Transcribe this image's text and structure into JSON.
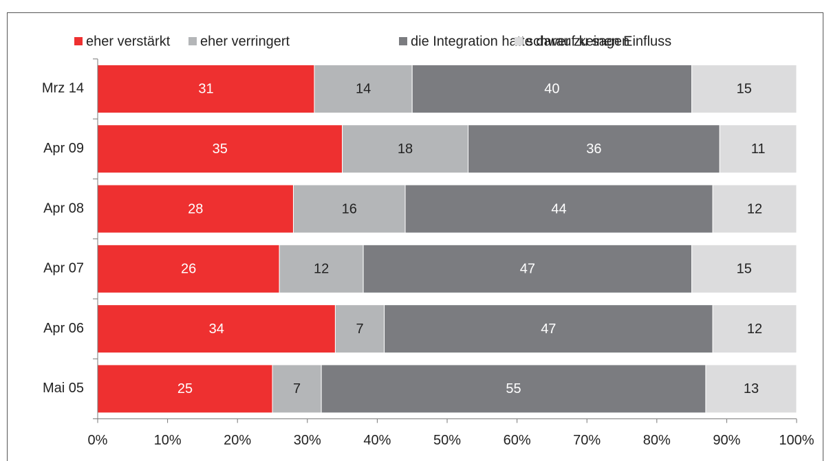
{
  "chart_data": {
    "type": "stacked_barh",
    "categories": [
      "Mrz 14",
      "Apr 09",
      "Apr 08",
      "Apr 07",
      "Apr 06",
      "Mai 05"
    ],
    "series": [
      {
        "name": "eher verstärkt",
        "color": "#ee3030",
        "values": [
          31,
          35,
          28,
          26,
          34,
          25
        ]
      },
      {
        "name": "eher verringert",
        "color": "#b4b6b8",
        "values": [
          14,
          18,
          16,
          12,
          7,
          7
        ]
      },
      {
        "name": "die Integration hatte darauf keinen Einfluss",
        "color": "#7b7c80",
        "values": [
          40,
          36,
          44,
          47,
          47,
          55
        ]
      },
      {
        "name": "schwer zu sagen",
        "color": "#dcdcdd",
        "values": [
          15,
          11,
          12,
          15,
          12,
          13
        ]
      }
    ],
    "xlim": [
      0,
      100
    ],
    "xticks": [
      {
        "value": 0,
        "label": "0%"
      },
      {
        "value": 10,
        "label": "10%"
      },
      {
        "value": 20,
        "label": "20%"
      },
      {
        "value": 30,
        "label": "30%"
      },
      {
        "value": 40,
        "label": "40%"
      },
      {
        "value": 50,
        "label": "50%"
      },
      {
        "value": 60,
        "label": "60%"
      },
      {
        "value": 70,
        "label": "70%"
      },
      {
        "value": 80,
        "label": "80%"
      },
      {
        "value": 90,
        "label": "90%"
      },
      {
        "value": 100,
        "label": "100%"
      }
    ],
    "legend": "top"
  }
}
